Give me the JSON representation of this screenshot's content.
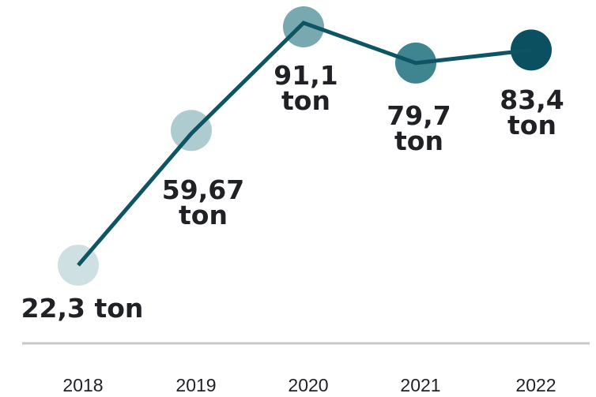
{
  "chart_data": {
    "type": "line",
    "title": "",
    "xlabel": "",
    "ylabel": "",
    "categories": [
      "2018",
      "2019",
      "2020",
      "2021",
      "2022"
    ],
    "values": [
      22.3,
      59.67,
      91.1,
      79.7,
      83.4
    ],
    "unit": "ton",
    "data_labels": [
      [
        "22,3 ton"
      ],
      [
        "59,67",
        "ton"
      ],
      [
        "91,1",
        "ton"
      ],
      [
        "79,7",
        "ton"
      ],
      [
        "83,4",
        "ton"
      ]
    ],
    "marker_colors": [
      "#cfe0e3",
      "#aecbcf",
      "#78a9b0",
      "#3f8590",
      "#0b5060"
    ],
    "line_color": "#0d5563",
    "axis_color": "#c8c8c8",
    "grid": false,
    "legend": "none"
  }
}
